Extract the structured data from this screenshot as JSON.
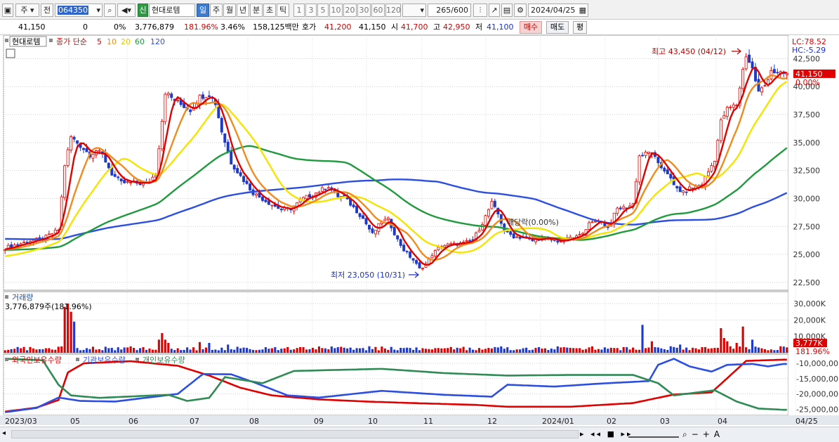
{
  "toolbar": {
    "market": "주",
    "prev": "전",
    "code": "064350",
    "badge": "신",
    "name": "현대로템",
    "periods": [
      "일",
      "주",
      "월",
      "년",
      "분",
      "초",
      "틱"
    ],
    "active_period": "일",
    "minutes": [
      "1",
      "3",
      "5",
      "10",
      "20",
      "30",
      "60",
      "120"
    ],
    "count": "265",
    "count_total": "/600",
    "date": "2024/04/25"
  },
  "info": {
    "price": "41,150",
    "change": "0",
    "change_pct": "0%",
    "volume": "3,776,879",
    "vol_ratio": "181.96%",
    "turnover": "3.46%",
    "amount": "158,125백만",
    "quote_label": "호가",
    "quote1": "41,200",
    "quote2": "41,150",
    "open_label": "시",
    "open": "41,700",
    "high_label": "고",
    "high": "42,950",
    "low_label": "저",
    "low": "41,100",
    "buy": "매수",
    "sell": "매도",
    "eval": "평"
  },
  "colors": {
    "ma5": "#e00000",
    "ma10": "#f08c1e",
    "ma20": "#f5e400",
    "ma60": "#1f9a3c",
    "ma120": "#2d4fe0",
    "up": "#e00000",
    "down": "#1f39c8",
    "foreign": "#e00000",
    "inst": "#2d4fe0",
    "indiv": "#2f8a55"
  },
  "chart_data": [
    {
      "type": "candlestick",
      "legend_title": "현대로템",
      "ma_label": "종가 단순",
      "ma_periods": [
        "5",
        "10",
        "20",
        "60",
        "120"
      ],
      "y_ticks": [
        "42,500",
        "40,000",
        "37,500",
        "35,000",
        "32,500",
        "30,000",
        "27,500",
        "25,000",
        "22,500"
      ],
      "ylim": [
        21800,
        44600
      ],
      "lc": "LC:78.52",
      "hc": "HC:-5.29",
      "last_price_label": "41,150",
      "last_change_label": "0.00%",
      "high_annotation": "최고 43,450 (04/12)",
      "low_annotation": "최저 23,050 (10/31)",
      "dividend_annotation": "배당락(0.00%)",
      "x_labels": [
        "2023/03",
        "05",
        "06",
        "07",
        "08",
        "09",
        "10",
        "11",
        "12",
        "2024/01",
        "02",
        "03",
        "04",
        "04/25"
      ],
      "close_path_keypoints": [
        [
          0,
          25600
        ],
        [
          8,
          26200
        ],
        [
          12,
          26400
        ],
        [
          17,
          27200
        ],
        [
          19,
          33000
        ],
        [
          21,
          35500
        ],
        [
          24,
          34700
        ],
        [
          27,
          33900
        ],
        [
          29,
          34300
        ],
        [
          31,
          33900
        ],
        [
          34,
          32200
        ],
        [
          37,
          31400
        ],
        [
          41,
          31400
        ],
        [
          45,
          31300
        ],
        [
          48,
          32200
        ],
        [
          50,
          37000
        ],
        [
          51,
          39500
        ],
        [
          53,
          39000
        ],
        [
          56,
          38400
        ],
        [
          59,
          37900
        ],
        [
          62,
          39100
        ],
        [
          65,
          39300
        ],
        [
          67,
          38500
        ],
        [
          69,
          36000
        ],
        [
          72,
          33200
        ],
        [
          75,
          32000
        ],
        [
          79,
          30500
        ],
        [
          84,
          29600
        ],
        [
          88,
          29000
        ],
        [
          91,
          29100
        ],
        [
          95,
          30000
        ],
        [
          99,
          30500
        ],
        [
          103,
          31100
        ],
        [
          106,
          30200
        ],
        [
          108,
          30100
        ],
        [
          111,
          29200
        ],
        [
          114,
          28200
        ],
        [
          117,
          26800
        ],
        [
          120,
          28000
        ],
        [
          122,
          28100
        ],
        [
          125,
          26300
        ],
        [
          127,
          25400
        ],
        [
          130,
          24500
        ],
        [
          132,
          23700
        ],
        [
          134,
          24100
        ],
        [
          136,
          25000
        ],
        [
          139,
          25800
        ],
        [
          143,
          25900
        ],
        [
          146,
          26000
        ],
        [
          149,
          26300
        ],
        [
          152,
          27800
        ],
        [
          155,
          29600
        ],
        [
          157,
          28600
        ],
        [
          159,
          27100
        ],
        [
          162,
          26600
        ],
        [
          165,
          26500
        ],
        [
          168,
          26200
        ],
        [
          171,
          26500
        ],
        [
          175,
          26200
        ],
        [
          177,
          26200
        ],
        [
          180,
          26400
        ],
        [
          183,
          26700
        ],
        [
          186,
          27700
        ],
        [
          189,
          28100
        ],
        [
          192,
          27400
        ],
        [
          195,
          29100
        ],
        [
          198,
          29200
        ],
        [
          200,
          29500
        ],
        [
          202,
          33800
        ],
        [
          206,
          34200
        ],
        [
          208,
          33000
        ],
        [
          211,
          32300
        ],
        [
          213,
          31100
        ],
        [
          216,
          30500
        ],
        [
          218,
          30900
        ],
        [
          222,
          31300
        ],
        [
          226,
          33500
        ],
        [
          228,
          36900
        ],
        [
          230,
          38000
        ],
        [
          233,
          38400
        ],
        [
          235,
          41500
        ],
        [
          236,
          42800
        ],
        [
          238,
          41600
        ],
        [
          240,
          39500
        ],
        [
          242,
          40100
        ],
        [
          244,
          41500
        ],
        [
          246,
          41100
        ],
        [
          248,
          41150
        ]
      ],
      "ma20_start": 24800,
      "ma60_start": 25400,
      "ma120_start": 26400
    },
    {
      "type": "bar",
      "title": "거래량",
      "value_label": "3,776,879주(181.96%)",
      "y_ticks": [
        "30,000K",
        "20,000K",
        "10,000K"
      ],
      "ylim": [
        0,
        33000
      ],
      "last_value_label": "3,777K",
      "last_ratio_label": "181.96%",
      "spikes": [
        [
          19,
          28000
        ],
        [
          20,
          30000
        ],
        [
          21,
          25000
        ],
        [
          22,
          19000
        ],
        [
          49,
          8000
        ],
        [
          50,
          12000
        ],
        [
          51,
          8000
        ],
        [
          52,
          6000
        ],
        [
          62,
          6500
        ],
        [
          65,
          6000
        ],
        [
          71,
          5000
        ],
        [
          126,
          3000
        ],
        [
          203,
          17000
        ],
        [
          206,
          7000
        ],
        [
          215,
          5000
        ],
        [
          228,
          15000
        ],
        [
          229,
          9000
        ],
        [
          230,
          7000
        ],
        [
          233,
          6000
        ],
        [
          235,
          16000
        ],
        [
          238,
          8000
        ],
        [
          248,
          3777
        ]
      ],
      "base_values": [
        1500,
        2500
      ]
    },
    {
      "type": "line",
      "legend": [
        "외국인보유수량",
        "기관보유수량",
        "개인보유수량"
      ],
      "y_ticks": [
        "-10,000,00",
        "-15,000,00",
        "-20,000,00",
        "-25,000,00"
      ],
      "ylim": [
        -27000000,
        -7000000
      ],
      "series": [
        {
          "name": "외국인보유수량",
          "keypoints": [
            [
              0,
              -25800000
            ],
            [
              10,
              -24500000
            ],
            [
              17,
              -22000000
            ],
            [
              20,
              -13000000
            ],
            [
              25,
              -10000000
            ],
            [
              40,
              -9300000
            ],
            [
              55,
              -10800000
            ],
            [
              65,
              -14000000
            ],
            [
              75,
              -18000000
            ],
            [
              85,
              -20500000
            ],
            [
              100,
              -21800000
            ],
            [
              115,
              -22500000
            ],
            [
              130,
              -23000000
            ],
            [
              150,
              -23600000
            ],
            [
              160,
              -24200000
            ],
            [
              180,
              -24200000
            ],
            [
              200,
              -23000000
            ],
            [
              213,
              -20200000
            ],
            [
              225,
              -19500000
            ],
            [
              232,
              -13000000
            ],
            [
              236,
              -9200000
            ],
            [
              248,
              -8800000
            ]
          ]
        },
        {
          "name": "기관보유수량",
          "keypoints": [
            [
              0,
              -26000000
            ],
            [
              10,
              -24600000
            ],
            [
              17,
              -21200000
            ],
            [
              24,
              -22300000
            ],
            [
              35,
              -22500000
            ],
            [
              55,
              -20000000
            ],
            [
              63,
              -13500000
            ],
            [
              72,
              -13600000
            ],
            [
              80,
              -16500000
            ],
            [
              90,
              -20500000
            ],
            [
              100,
              -21200000
            ],
            [
              120,
              -19000000
            ],
            [
              140,
              -20300000
            ],
            [
              155,
              -20900000
            ],
            [
              160,
              -17000000
            ],
            [
              175,
              -17600000
            ],
            [
              190,
              -16600000
            ],
            [
              205,
              -15800000
            ],
            [
              208,
              -10500000
            ],
            [
              213,
              -8500000
            ],
            [
              218,
              -11000000
            ],
            [
              225,
              -12700000
            ],
            [
              230,
              -10500000
            ],
            [
              238,
              -10200000
            ],
            [
              243,
              -11000000
            ],
            [
              248,
              -10200000
            ]
          ]
        },
        {
          "name": "개인보유수량",
          "keypoints": [
            [
              0,
              -8500000
            ],
            [
              12,
              -9000000
            ],
            [
              17,
              -17000000
            ],
            [
              21,
              -20500000
            ],
            [
              30,
              -21300000
            ],
            [
              52,
              -20300000
            ],
            [
              58,
              -22300000
            ],
            [
              65,
              -21300000
            ],
            [
              70,
              -14500000
            ],
            [
              82,
              -16500000
            ],
            [
              92,
              -12500000
            ],
            [
              120,
              -11800000
            ],
            [
              140,
              -13200000
            ],
            [
              160,
              -14000000
            ],
            [
              180,
              -13800000
            ],
            [
              200,
              -13800000
            ],
            [
              208,
              -16500000
            ],
            [
              213,
              -20500000
            ],
            [
              226,
              -18800000
            ],
            [
              233,
              -22500000
            ],
            [
              240,
              -24800000
            ],
            [
              248,
              -25200000
            ]
          ]
        }
      ]
    }
  ]
}
